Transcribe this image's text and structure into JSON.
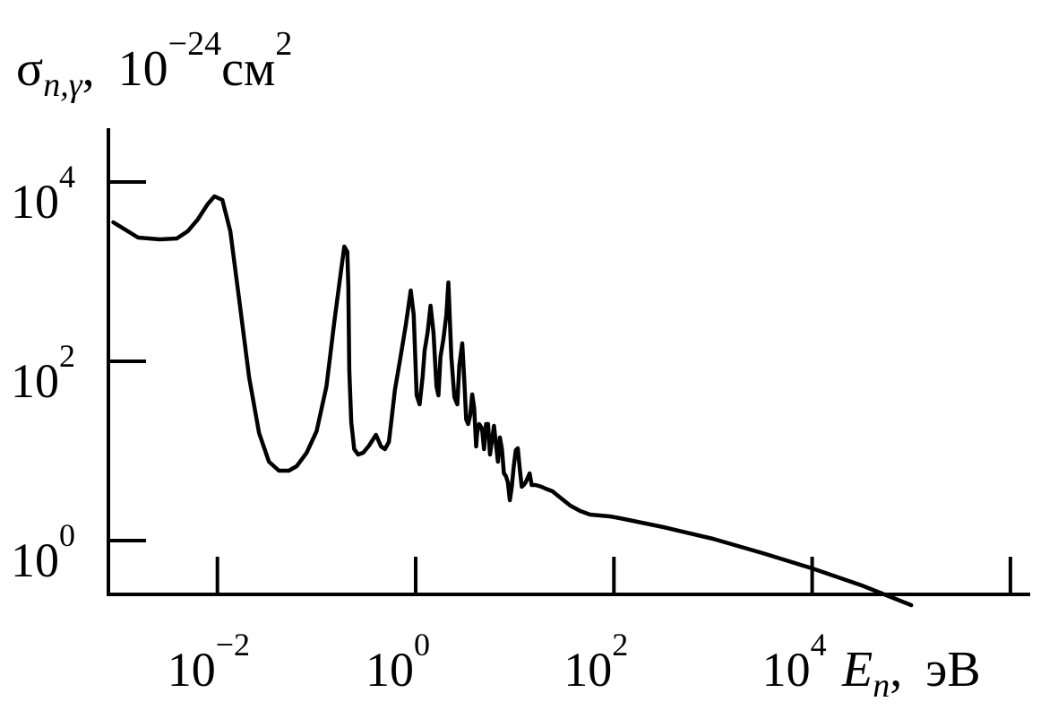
{
  "chart_data": {
    "type": "line",
    "x_scale": "log10",
    "y_scale": "log10",
    "xlim_log10": [
      -3.1,
      6.2
    ],
    "ylim_log10": [
      -0.6,
      4.6
    ],
    "ylabel": {
      "sigma": "σ",
      "sub": "n,γ",
      "sep": ",",
      "mant": "10",
      "exp": "−24",
      "unit": "см",
      "unit_exp": "2"
    },
    "xlabel": {
      "var": "E",
      "sub": "n",
      "sep": ",",
      "unit": "эВ"
    },
    "x_ticks_log10": [
      -2,
      0,
      2,
      4,
      6
    ],
    "x_tick_labels": [
      {
        "mant": "10",
        "exp": "−2"
      },
      {
        "mant": "10",
        "exp": "0"
      },
      {
        "mant": "10",
        "exp": "2"
      },
      {
        "mant": "10",
        "exp": "4"
      },
      {
        "mant": "",
        "exp": ""
      }
    ],
    "y_ticks_log10": [
      0,
      2,
      4
    ],
    "y_tick_labels": [
      {
        "mant": "10",
        "exp": "0"
      },
      {
        "mant": "10",
        "exp": "2"
      },
      {
        "mant": "10",
        "exp": "4"
      }
    ],
    "series": [
      {
        "color": "#000000",
        "log10_x": [
          -3.05,
          -2.8,
          -2.58,
          -2.41,
          -2.3,
          -2.2,
          -2.1,
          -2.03,
          -1.95,
          -1.87,
          -1.78,
          -1.68,
          -1.58,
          -1.48,
          -1.38,
          -1.28,
          -1.2,
          -1.1,
          -1.0,
          -0.9,
          -0.82,
          -0.76,
          -0.72,
          -0.69,
          -0.68,
          -0.67,
          -0.65,
          -0.62,
          -0.58,
          -0.53,
          -0.47,
          -0.4,
          -0.35,
          -0.31,
          -0.27,
          -0.24,
          -0.21,
          -0.16,
          -0.1,
          -0.05,
          -0.02,
          0.01,
          0.04,
          0.07,
          0.09,
          0.12,
          0.15,
          0.18,
          0.21,
          0.23,
          0.25,
          0.28,
          0.31,
          0.33,
          0.36,
          0.39,
          0.42,
          0.44,
          0.47,
          0.49,
          0.51,
          0.53,
          0.55,
          0.57,
          0.59,
          0.61,
          0.62,
          0.64,
          0.67,
          0.69,
          0.71,
          0.73,
          0.75,
          0.77,
          0.79,
          0.81,
          0.83,
          0.85,
          0.87,
          0.89,
          0.91,
          0.93,
          0.95,
          0.97,
          0.99,
          1.01,
          1.03,
          1.05,
          1.07,
          1.09,
          1.11,
          1.13,
          1.15,
          1.17,
          1.19,
          1.21,
          1.24,
          1.27,
          1.31,
          1.38,
          1.47,
          1.56,
          1.66,
          1.76,
          1.86,
          1.96,
          2.06,
          2.5,
          3.0,
          3.5,
          4.0,
          4.5,
          5.0
        ],
        "log10_y": [
          3.55,
          3.38,
          3.36,
          3.37,
          3.45,
          3.58,
          3.75,
          3.84,
          3.8,
          3.45,
          2.68,
          1.82,
          1.2,
          0.88,
          0.78,
          0.78,
          0.83,
          0.98,
          1.22,
          1.72,
          2.45,
          2.95,
          3.28,
          3.22,
          2.85,
          1.9,
          1.32,
          1.02,
          0.96,
          0.98,
          1.06,
          1.18,
          1.05,
          1.02,
          1.1,
          1.38,
          1.68,
          2.0,
          2.4,
          2.79,
          2.52,
          1.62,
          1.52,
          1.82,
          2.12,
          2.32,
          2.62,
          2.32,
          1.72,
          1.62,
          2.05,
          2.25,
          2.52,
          2.88,
          2.05,
          1.6,
          1.52,
          1.95,
          2.2,
          1.8,
          1.35,
          1.3,
          1.4,
          1.63,
          1.48,
          1.05,
          1.2,
          1.3,
          1.25,
          1.02,
          1.3,
          1.3,
          0.96,
          1.12,
          1.28,
          1.08,
          0.88,
          1.15,
          1.02,
          0.75,
          0.72,
          0.65,
          0.45,
          0.6,
          0.83,
          1.01,
          1.03,
          0.8,
          0.6,
          0.62,
          0.65,
          0.7,
          0.75,
          0.62,
          0.62,
          0.62,
          0.61,
          0.6,
          0.58,
          0.55,
          0.47,
          0.39,
          0.33,
          0.29,
          0.28,
          0.27,
          0.25,
          0.15,
          0.02,
          -0.14,
          -0.31,
          -0.5,
          -0.72
        ]
      }
    ]
  }
}
